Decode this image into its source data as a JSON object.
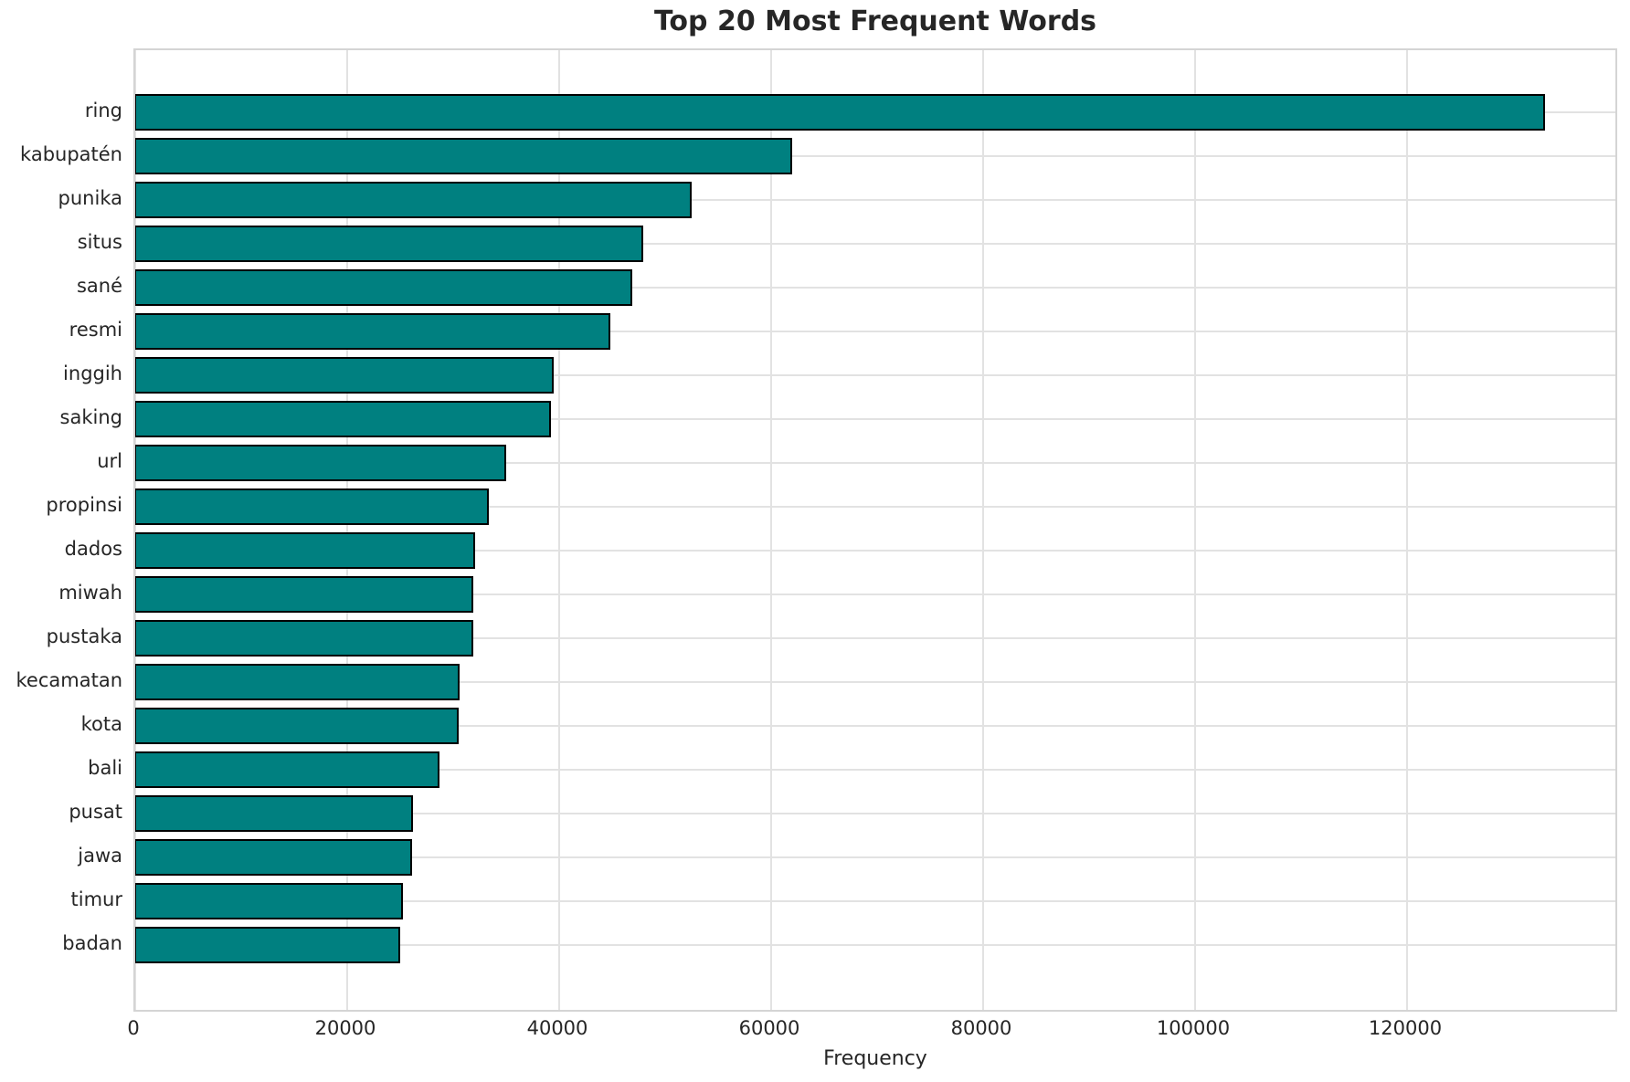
{
  "chart_data": {
    "type": "bar",
    "orientation": "horizontal",
    "title": "Top 20 Most Frequent Words",
    "xlabel": "Frequency",
    "ylabel": "",
    "categories": [
      "ring",
      "kabupatén",
      "punika",
      "situs",
      "sané",
      "resmi",
      "inggih",
      "saking",
      "url",
      "propinsi",
      "dados",
      "miwah",
      "pustaka",
      "kecamatan",
      "kota",
      "bali",
      "pusat",
      "jawa",
      "timur",
      "badan"
    ],
    "values": [
      133000,
      62000,
      52500,
      47900,
      46900,
      44800,
      39500,
      39200,
      35000,
      33400,
      32100,
      31900,
      31900,
      30600,
      30500,
      28700,
      26200,
      26100,
      25300,
      25000
    ],
    "x_ticks": [
      0,
      20000,
      40000,
      60000,
      80000,
      100000,
      120000
    ],
    "xlim": [
      0,
      139900
    ],
    "grid": true,
    "legend": false,
    "colors": {
      "bar_fill": "#008080",
      "bar_edge": "#000000",
      "grid": "#e2e2e2",
      "spine": "#d4d4d4",
      "text": "#262626",
      "background": "#ffffff"
    }
  }
}
